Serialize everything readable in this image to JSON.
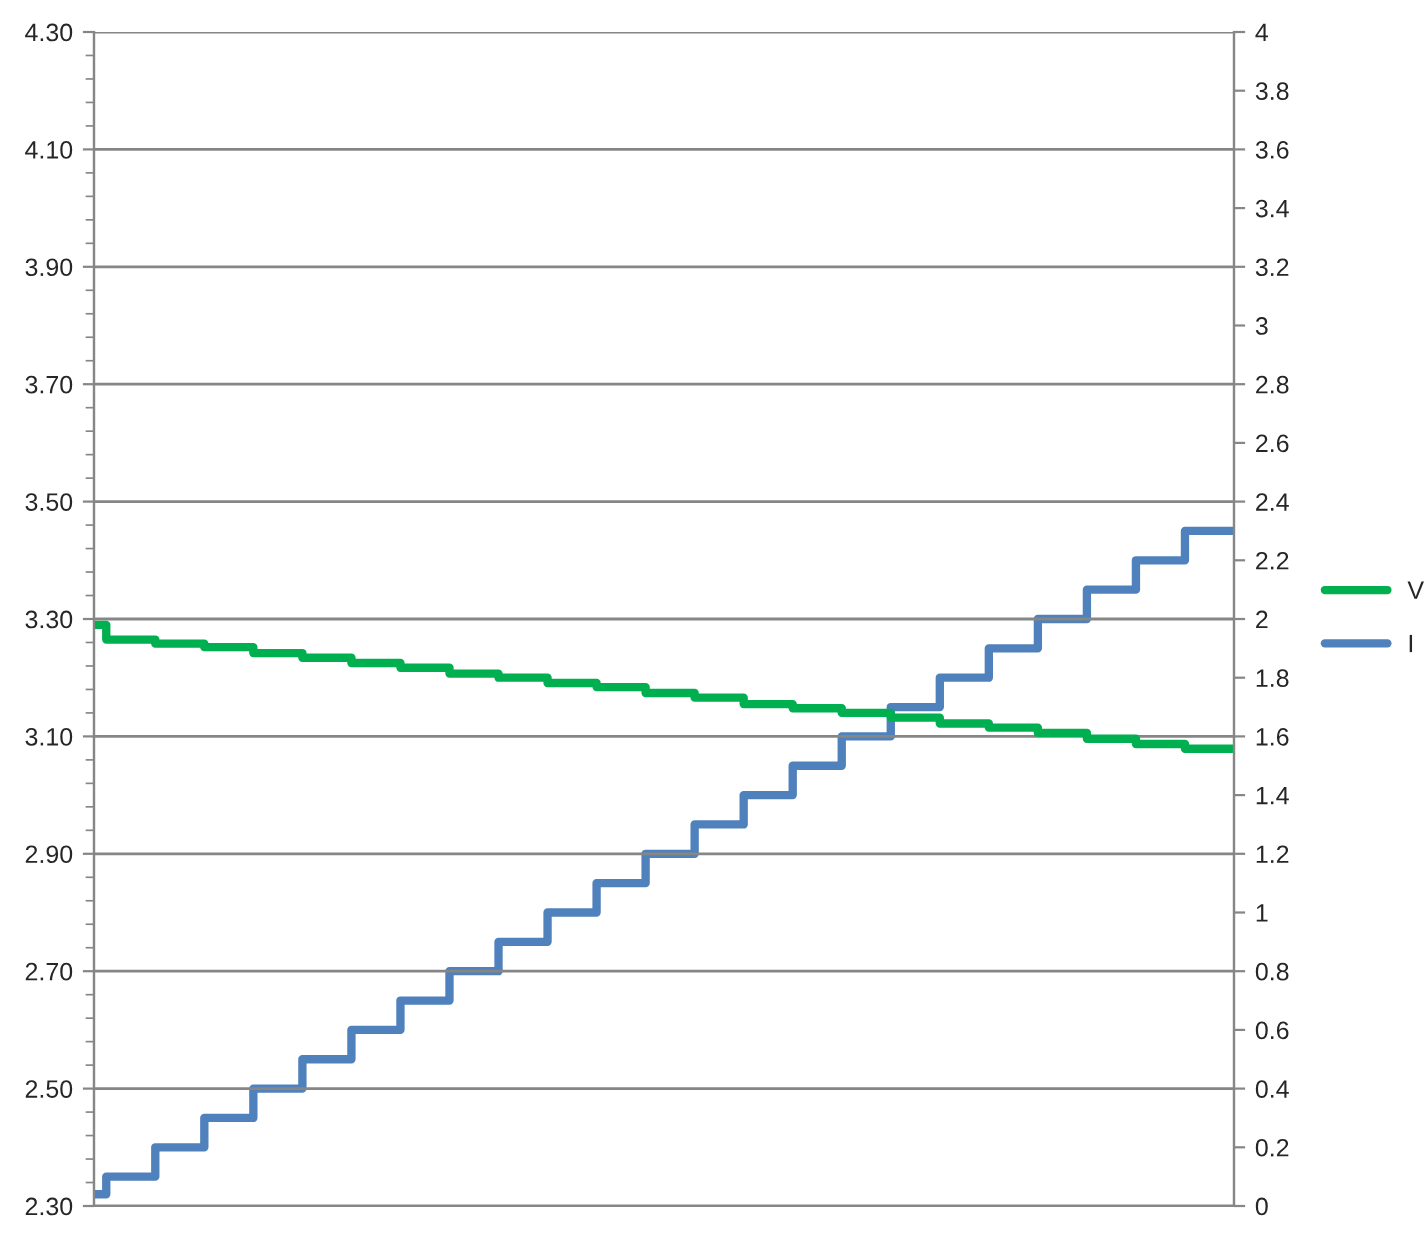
{
  "chart_data": {
    "type": "step",
    "categories": [
      null,
      null,
      null,
      null,
      null,
      null,
      null,
      null,
      null,
      null,
      null,
      null,
      null,
      null,
      null,
      null,
      null,
      null,
      null,
      null,
      null,
      null,
      null,
      null,
      null,
      null,
      null,
      null,
      null,
      null,
      null,
      null,
      null,
      null,
      null,
      null,
      null,
      null,
      null,
      null,
      null,
      null,
      null,
      null,
      null,
      null,
      null,
      null,
      null,
      null,
      null,
      null,
      null,
      null,
      null,
      null,
      null,
      null,
      null,
      null,
      null,
      null,
      null,
      null,
      null,
      null,
      null,
      null,
      null,
      null,
      null,
      null,
      null,
      null,
      null,
      null,
      null,
      null,
      null,
      null,
      null,
      null,
      null,
      null,
      null,
      null,
      null,
      null,
      null,
      null,
      null,
      null,
      null,
      null
    ],
    "series": [
      {
        "name": "V",
        "color": "#00b050",
        "values": [
          3.29,
          3.265,
          3.265,
          3.265,
          3.265,
          3.258,
          3.258,
          3.258,
          3.258,
          3.252,
          3.252,
          3.252,
          3.252,
          3.242,
          3.242,
          3.242,
          3.242,
          3.234,
          3.234,
          3.234,
          3.234,
          3.225,
          3.225,
          3.225,
          3.225,
          3.217,
          3.217,
          3.217,
          3.217,
          3.207,
          3.207,
          3.207,
          3.207,
          3.2,
          3.2,
          3.2,
          3.2,
          3.191,
          3.191,
          3.191,
          3.191,
          3.184,
          3.184,
          3.184,
          3.184,
          3.174,
          3.174,
          3.174,
          3.174,
          3.166,
          3.166,
          3.166,
          3.166,
          3.155,
          3.155,
          3.155,
          3.155,
          3.148,
          3.148,
          3.148,
          3.148,
          3.14,
          3.14,
          3.14,
          3.14,
          3.132,
          3.132,
          3.132,
          3.132,
          3.122,
          3.122,
          3.122,
          3.122,
          3.115,
          3.115,
          3.115,
          3.115,
          3.106,
          3.106,
          3.106,
          3.106,
          3.096,
          3.096,
          3.096,
          3.096,
          3.087,
          3.087,
          3.087,
          3.087,
          3.079,
          3.079,
          3.079,
          3.079,
          3.079
        ]
      },
      {
        "name": "I",
        "color": "#4f81bd",
        "axis": "y2",
        "values": [
          0.04,
          0.1,
          0.1,
          0.1,
          0.1,
          0.2,
          0.2,
          0.2,
          0.2,
          0.3,
          0.3,
          0.3,
          0.3,
          0.4,
          0.4,
          0.4,
          0.4,
          0.5,
          0.5,
          0.5,
          0.5,
          0.6,
          0.6,
          0.6,
          0.6,
          0.7,
          0.7,
          0.7,
          0.7,
          0.8,
          0.8,
          0.8,
          0.8,
          0.9,
          0.9,
          0.9,
          0.9,
          1.0,
          1.0,
          1.0,
          1.0,
          1.1,
          1.1,
          1.1,
          1.1,
          1.2,
          1.2,
          1.2,
          1.2,
          1.3,
          1.3,
          1.3,
          1.3,
          1.4,
          1.4,
          1.4,
          1.4,
          1.5,
          1.5,
          1.5,
          1.5,
          1.6,
          1.6,
          1.6,
          1.6,
          1.7,
          1.7,
          1.7,
          1.7,
          1.8,
          1.8,
          1.8,
          1.8,
          1.9,
          1.9,
          1.9,
          1.9,
          2.0,
          2.0,
          2.0,
          2.0,
          2.1,
          2.1,
          2.1,
          2.1,
          2.2,
          2.2,
          2.2,
          2.2,
          2.3,
          2.3,
          2.3,
          2.3,
          2.3
        ]
      }
    ],
    "ylim": [
      2.3,
      4.3
    ],
    "yticks": [
      {
        "value": 2.3,
        "label": "2.30"
      },
      {
        "value": 2.5,
        "label": "2.50"
      },
      {
        "value": 2.7,
        "label": "2.70"
      },
      {
        "value": 2.9,
        "label": "2.90"
      },
      {
        "value": 3.1,
        "label": "3.10"
      },
      {
        "value": 3.3,
        "label": "3.30"
      },
      {
        "value": 3.5,
        "label": "3.50"
      },
      {
        "value": 3.7,
        "label": "3.70"
      },
      {
        "value": 3.9,
        "label": "3.90"
      },
      {
        "value": 4.1,
        "label": "4.10"
      },
      {
        "value": 4.3,
        "label": "4.30"
      }
    ],
    "y2lim": [
      0,
      4
    ],
    "y2ticks": [
      0,
      0.2,
      0.4,
      0.6,
      0.8,
      1,
      1.2,
      1.4,
      1.6,
      1.8,
      2,
      2.2,
      2.4,
      2.6,
      2.8,
      3,
      3.2,
      3.4,
      3.6,
      3.8,
      4
    ],
    "grid": "y",
    "legend": "right",
    "marker": "none",
    "line_style": "solid"
  }
}
